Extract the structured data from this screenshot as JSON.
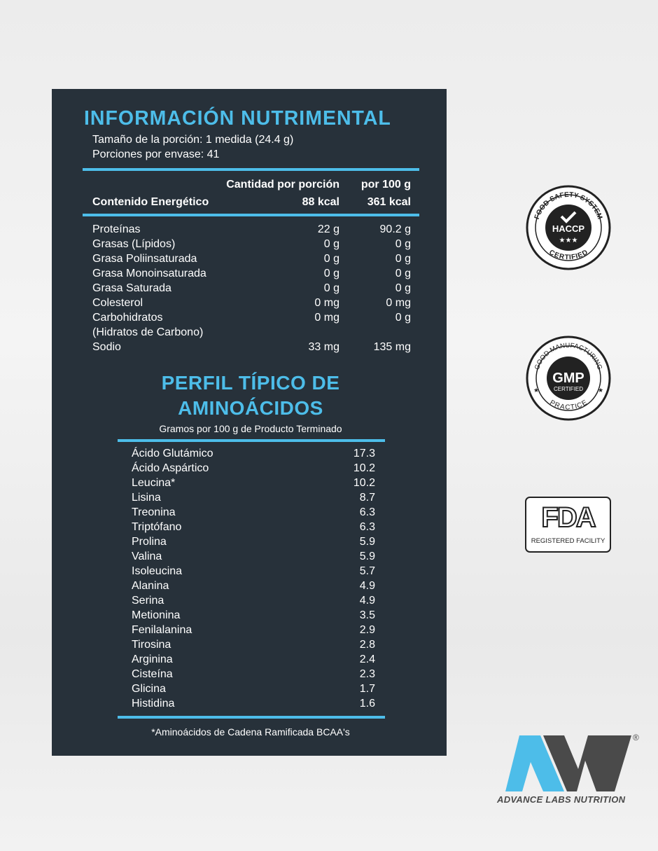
{
  "nutrition": {
    "title": "INFORMACIÓN NUTRIMENTAL",
    "serving_size": "Tamaño de la porción: 1 medida (24.4 g)",
    "servings": "Porciones por envase: 41",
    "col_per_serving": "Cantidad por porción",
    "col_per_100g": "por 100 g",
    "energy": {
      "label": "Contenido Energético",
      "per_serving": "88 kcal",
      "per_100g": "361 kcal"
    },
    "rows": [
      {
        "label": "Proteínas",
        "per_serving": "22 g",
        "per_100g": "90.2 g"
      },
      {
        "label": "Grasas (Lípidos)",
        "per_serving": "0 g",
        "per_100g": "0 g"
      },
      {
        "label": "Grasa Poliinsaturada",
        "per_serving": "0 g",
        "per_100g": "0 g"
      },
      {
        "label": "Grasa Monoinsaturada",
        "per_serving": "0 g",
        "per_100g": "0 g"
      },
      {
        "label": "Grasa Saturada",
        "per_serving": "0 g",
        "per_100g": "0 g"
      },
      {
        "label": "Colesterol",
        "per_serving": "0 mg",
        "per_100g": "0 mg"
      },
      {
        "label": "Carbohidratos",
        "per_serving": "0 mg",
        "per_100g": "0 g"
      },
      {
        "label": "(Hidratos de Carbono)",
        "per_serving": "",
        "per_100g": ""
      },
      {
        "label": "Sodio",
        "per_serving": "33 mg",
        "per_100g": "135 mg"
      }
    ]
  },
  "amino": {
    "title_line1": "PERFIL TÍPICO DE",
    "title_line2": "AMINOÁCIDOS",
    "subtitle": "Gramos por 100 g de Producto Terminado",
    "rows": [
      {
        "name": "Ácido Glutámico",
        "value": "17.3"
      },
      {
        "name": "Ácido Aspártico",
        "value": "10.2"
      },
      {
        "name": "Leucina*",
        "value": "10.2"
      },
      {
        "name": "Lisina",
        "value": "8.7"
      },
      {
        "name": "Treonina",
        "value": "6.3"
      },
      {
        "name": "Triptófano",
        "value": "6.3"
      },
      {
        "name": "Prolina",
        "value": "5.9"
      },
      {
        "name": "Valina",
        "value": "5.9"
      },
      {
        "name": "Isoleucina",
        "value": "5.7"
      },
      {
        "name": "Alanina",
        "value": "4.9"
      },
      {
        "name": "Serina",
        "value": "4.9"
      },
      {
        "name": "Metionina",
        "value": "3.5"
      },
      {
        "name": "Fenilalanina",
        "value": "2.9"
      },
      {
        "name": "Tirosina",
        "value": "2.8"
      },
      {
        "name": "Arginina",
        "value": "2.4"
      },
      {
        "name": "Cisteína",
        "value": "2.3"
      },
      {
        "name": "Glicina",
        "value": "1.7"
      },
      {
        "name": "Histidina",
        "value": "1.6"
      }
    ],
    "footnote": "*Aminoácidos de Cadena Ramificada BCAA's"
  },
  "badges": {
    "haccp": {
      "top": "FOOD SAFETY SYSTEM",
      "center": "HACCP",
      "bottom": "CERTIFIED"
    },
    "gmp": {
      "top": "GOOD MANUFACTURING",
      "center": "GMP",
      "sub": "CERTIFIED",
      "bottom": "PRACTICE"
    },
    "fda": {
      "center": "FDA",
      "bottom": "REGISTERED FACILITY"
    }
  },
  "brand": {
    "name": "ADVANCE LABS NUTRITION",
    "registered": "®"
  },
  "colors": {
    "accent": "#4dbde9",
    "panel": "#27313a",
    "logo_gray": "#4a4a4a"
  }
}
